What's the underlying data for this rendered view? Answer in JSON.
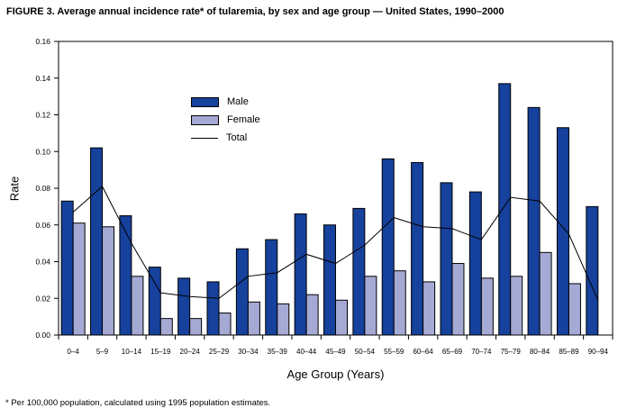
{
  "title": "FIGURE 3. Average annual incidence rate* of tularemia, by sex and age group — United States, 1990–2000",
  "footnote": "* Per 100,000 population, calculated using 1995 population estimates.",
  "legend": {
    "male_label": "Male",
    "female_label": "Female",
    "total_label": "Total"
  },
  "chart_data": {
    "type": "bar",
    "title": "FIGURE 3. Average annual incidence rate* of tularemia, by sex and age group — United States, 1990–2000",
    "categories": [
      "0–4",
      "5–9",
      "10–14",
      "15–19",
      "20–24",
      "25–29",
      "30–34",
      "35–39",
      "40–44",
      "45–49",
      "50–54",
      "55–59",
      "60–64",
      "65–69",
      "70–74",
      "75–79",
      "80–84",
      "85–89",
      "90–94"
    ],
    "series": [
      {
        "name": "Male",
        "type": "bar",
        "color": "#16419C",
        "values": [
          0.073,
          0.102,
          0.065,
          0.037,
          0.031,
          0.029,
          0.047,
          0.052,
          0.066,
          0.06,
          0.069,
          0.096,
          0.094,
          0.083,
          0.078,
          0.137,
          0.124,
          0.113,
          0.07
        ]
      },
      {
        "name": "Female",
        "type": "bar",
        "color": "#A5AAD4",
        "values": [
          0.061,
          0.059,
          0.032,
          0.009,
          0.009,
          0.012,
          0.018,
          0.017,
          0.022,
          0.019,
          0.032,
          0.035,
          0.029,
          0.039,
          0.031,
          0.032,
          0.045,
          0.028,
          null
        ]
      },
      {
        "name": "Total",
        "type": "line",
        "color": "#000000",
        "values": [
          0.067,
          0.081,
          0.05,
          0.023,
          0.021,
          0.02,
          0.032,
          0.034,
          0.044,
          0.039,
          0.049,
          0.064,
          0.059,
          0.058,
          0.052,
          0.075,
          0.073,
          0.055,
          0.019
        ]
      }
    ],
    "xlabel": "Age Group (Years)",
    "ylabel": "Rate",
    "ylim": [
      0,
      0.16
    ],
    "ytick_step": 0.02,
    "legend_position": "inside-top-left",
    "grid": false
  }
}
